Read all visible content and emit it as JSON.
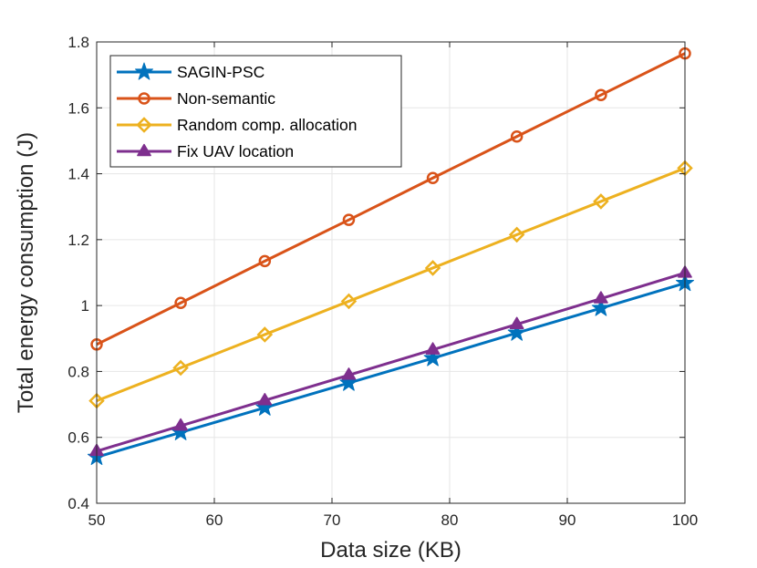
{
  "chart_data": {
    "type": "line",
    "xlabel": "Data size (KB)",
    "ylabel": "Total energy consumption (J)",
    "xlim": [
      50,
      100
    ],
    "ylim": [
      0.4,
      1.8
    ],
    "xticks": [
      50,
      60,
      70,
      80,
      90,
      100
    ],
    "yticks": [
      0.4,
      0.6,
      0.8,
      1,
      1.2,
      1.4,
      1.6,
      1.8
    ],
    "grid": true,
    "legend_position": "top-left",
    "x": [
      50,
      57.14,
      64.29,
      71.43,
      78.57,
      85.71,
      92.86,
      100
    ],
    "series": [
      {
        "name": "SAGIN-PSC",
        "color": "#0072BD",
        "marker": "star",
        "values": [
          0.54,
          0.615,
          0.69,
          0.765,
          0.84,
          0.917,
          0.992,
          1.068
        ]
      },
      {
        "name": "Non-semantic",
        "color": "#D95319",
        "marker": "circle",
        "values": [
          0.882,
          1.008,
          1.135,
          1.26,
          1.387,
          1.513,
          1.639,
          1.765
        ]
      },
      {
        "name": "Random comp. allocation",
        "color": "#EDB120",
        "marker": "diamond",
        "values": [
          0.711,
          0.811,
          0.912,
          1.013,
          1.114,
          1.215,
          1.316,
          1.417
        ]
      },
      {
        "name": "Fix UAV location",
        "color": "#7E2F8E",
        "marker": "triangle",
        "values": [
          0.558,
          0.635,
          0.712,
          0.789,
          0.866,
          0.943,
          1.021,
          1.099
        ]
      }
    ]
  }
}
